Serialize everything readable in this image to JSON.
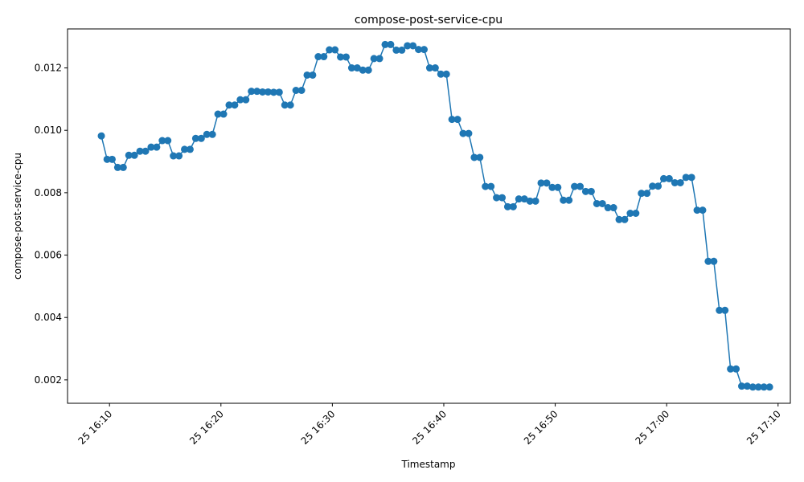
{
  "chart_data": {
    "type": "line",
    "title": "compose-post-service-cpu",
    "xlabel": "Timestamp",
    "ylabel": "compose-post-service-cpu",
    "ylim": [
      0.00125,
      0.01325
    ],
    "xlim": [
      "2024-03-25 16:06:14",
      "2024-03-25 17:11:06"
    ],
    "x_ticks": [
      "25 16:10",
      "25 16:20",
      "25 16:30",
      "25 16:40",
      "25 16:50",
      "25 17:00",
      "25 17:10"
    ],
    "y_ticks": [
      "0.002",
      "0.004",
      "0.006",
      "0.008",
      "0.010",
      "0.012"
    ],
    "grid": false,
    "color": "#1f77b4",
    "marker": "circle",
    "x": [
      "2024-03-25 16:09:16",
      "2024-03-25 16:09:47",
      "2024-03-25 16:10:14",
      "2024-03-25 16:10:44",
      "2024-03-25 16:11:14",
      "2024-03-25 16:11:44",
      "2024-03-25 16:12:14",
      "2024-03-25 16:12:44",
      "2024-03-25 16:13:14",
      "2024-03-25 16:13:44",
      "2024-03-25 16:14:14",
      "2024-03-25 16:14:44",
      "2024-03-25 16:15:14",
      "2024-03-25 16:15:44",
      "2024-03-25 16:16:14",
      "2024-03-25 16:16:44",
      "2024-03-25 16:17:14",
      "2024-03-25 16:17:44",
      "2024-03-25 16:18:14",
      "2024-03-25 16:18:44",
      "2024-03-25 16:19:14",
      "2024-03-25 16:19:44",
      "2024-03-25 16:20:14",
      "2024-03-25 16:20:44",
      "2024-03-25 16:21:14",
      "2024-03-25 16:21:44",
      "2024-03-25 16:22:14",
      "2024-03-25 16:22:44",
      "2024-03-25 16:23:14",
      "2024-03-25 16:23:44",
      "2024-03-25 16:24:14",
      "2024-03-25 16:24:44",
      "2024-03-25 16:25:14",
      "2024-03-25 16:25:44",
      "2024-03-25 16:26:14",
      "2024-03-25 16:26:44",
      "2024-03-25 16:27:14",
      "2024-03-25 16:27:44",
      "2024-03-25 16:28:14",
      "2024-03-25 16:28:44",
      "2024-03-25 16:29:14",
      "2024-03-25 16:29:44",
      "2024-03-25 16:30:14",
      "2024-03-25 16:30:44",
      "2024-03-25 16:31:14",
      "2024-03-25 16:31:44",
      "2024-03-25 16:32:14",
      "2024-03-25 16:32:44",
      "2024-03-25 16:33:14",
      "2024-03-25 16:33:44",
      "2024-03-25 16:34:14",
      "2024-03-25 16:34:44",
      "2024-03-25 16:35:14",
      "2024-03-25 16:35:44",
      "2024-03-25 16:36:14",
      "2024-03-25 16:36:44",
      "2024-03-25 16:37:14",
      "2024-03-25 16:37:44",
      "2024-03-25 16:38:14",
      "2024-03-25 16:38:44",
      "2024-03-25 16:39:14",
      "2024-03-25 16:39:44",
      "2024-03-25 16:40:14",
      "2024-03-25 16:40:44",
      "2024-03-25 16:41:14",
      "2024-03-25 16:41:44",
      "2024-03-25 16:42:14",
      "2024-03-25 16:42:44",
      "2024-03-25 16:43:14",
      "2024-03-25 16:43:44",
      "2024-03-25 16:44:14",
      "2024-03-25 16:44:44",
      "2024-03-25 16:45:14",
      "2024-03-25 16:45:44",
      "2024-03-25 16:46:14",
      "2024-03-25 16:46:44",
      "2024-03-25 16:47:14",
      "2024-03-25 16:47:44",
      "2024-03-25 16:48:14",
      "2024-03-25 16:48:44",
      "2024-03-25 16:49:14",
      "2024-03-25 16:49:44",
      "2024-03-25 16:50:14",
      "2024-03-25 16:50:44",
      "2024-03-25 16:51:14",
      "2024-03-25 16:51:44",
      "2024-03-25 16:52:14",
      "2024-03-25 16:52:44",
      "2024-03-25 16:53:14",
      "2024-03-25 16:53:44",
      "2024-03-25 16:54:14",
      "2024-03-25 16:54:44",
      "2024-03-25 16:55:14",
      "2024-03-25 16:55:44",
      "2024-03-25 16:56:14",
      "2024-03-25 16:56:44",
      "2024-03-25 16:57:14",
      "2024-03-25 16:57:44",
      "2024-03-25 16:58:14",
      "2024-03-25 16:58:44",
      "2024-03-25 16:59:14",
      "2024-03-25 16:59:44",
      "2024-03-25 17:00:14",
      "2024-03-25 17:00:44",
      "2024-03-25 17:01:14",
      "2024-03-25 17:01:44",
      "2024-03-25 17:02:14",
      "2024-03-25 17:02:44",
      "2024-03-25 17:03:14",
      "2024-03-25 17:03:44",
      "2024-03-25 17:04:14",
      "2024-03-25 17:04:44",
      "2024-03-25 17:05:14",
      "2024-03-25 17:05:44",
      "2024-03-25 17:06:14",
      "2024-03-25 17:06:44",
      "2024-03-25 17:07:14",
      "2024-03-25 17:07:44",
      "2024-03-25 17:08:14",
      "2024-03-25 17:08:44",
      "2024-03-25 17:09:14"
    ],
    "series": [
      {
        "values": [
          0.00982,
          0.00907,
          0.00907,
          0.00881,
          0.00881,
          0.0092,
          0.0092,
          0.00933,
          0.00933,
          0.00946,
          0.00946,
          0.00967,
          0.00967,
          0.00918,
          0.00918,
          0.00939,
          0.00939,
          0.00974,
          0.00974,
          0.00987,
          0.00987,
          0.01052,
          0.01052,
          0.01081,
          0.01081,
          0.01098,
          0.01098,
          0.01125,
          0.01125,
          0.01123,
          0.01123,
          0.01122,
          0.01122,
          0.01081,
          0.01081,
          0.01128,
          0.01128,
          0.01177,
          0.01177,
          0.01236,
          0.01236,
          0.01258,
          0.01258,
          0.01235,
          0.01235,
          0.012,
          0.012,
          0.01193,
          0.01193,
          0.0123,
          0.0123,
          0.01275,
          0.01275,
          0.01257,
          0.01257,
          0.01271,
          0.01271,
          0.01259,
          0.01259,
          0.012,
          0.012,
          0.0118,
          0.0118,
          0.01035,
          0.01035,
          0.0099,
          0.0099,
          0.00913,
          0.00913,
          0.0082,
          0.0082,
          0.00784,
          0.00784,
          0.00755,
          0.00755,
          0.0078,
          0.0078,
          0.00773,
          0.00773,
          0.00831,
          0.00831,
          0.00817,
          0.00817,
          0.00776,
          0.00776,
          0.0082,
          0.0082,
          0.00804,
          0.00804,
          0.00765,
          0.00765,
          0.00752,
          0.00752,
          0.00714,
          0.00714,
          0.00734,
          0.00734,
          0.00798,
          0.00798,
          0.00821,
          0.00821,
          0.00845,
          0.00845,
          0.00832,
          0.00832,
          0.00849,
          0.00849,
          0.00744,
          0.00744,
          0.0058,
          0.0058,
          0.00423,
          0.00423,
          0.00235,
          0.00235,
          0.0018,
          0.0018,
          0.00177,
          0.00177,
          0.00177,
          0.00177
        ]
      }
    ]
  }
}
